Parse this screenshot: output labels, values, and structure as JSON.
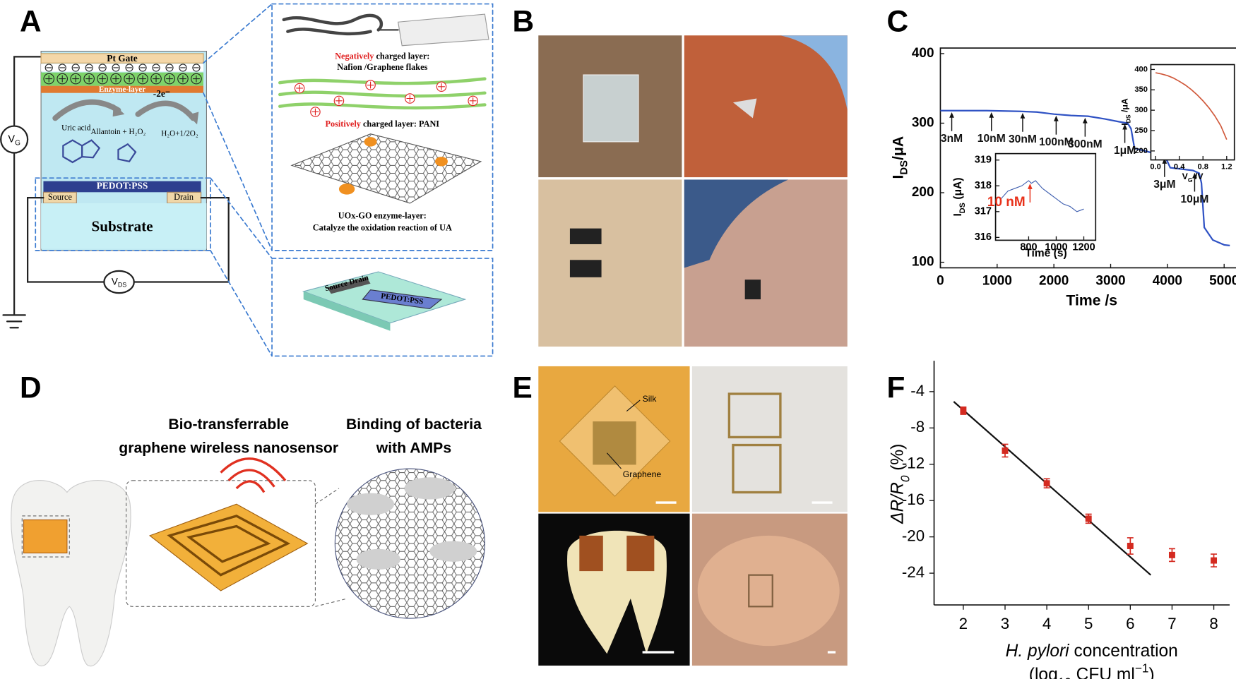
{
  "panel_labels": [
    "A",
    "B",
    "C",
    "D",
    "E",
    "F"
  ],
  "panel_a": {
    "pt_gate": "Pt Gate",
    "enzyme_layer": "Enzyme-layer",
    "uric_acid": "Uric acid",
    "allantoin": "Allantoin + H₂O₂",
    "electrons": "-2e⁻",
    "product": "H₂O+1/2O₂",
    "pedot": "PEDOT:PSS",
    "source": "Source",
    "drain": "Drain",
    "substrate": "Substrate",
    "vg": [
      "V",
      "G"
    ],
    "vds": [
      "V",
      "DS"
    ],
    "neg_title": [
      "Negatively",
      " charged layer:"
    ],
    "neg_desc": "Nafion /Graphene flakes",
    "pos_title": [
      "Positively",
      " charged layer: PANI"
    ],
    "enz_title": "UOx-GO  enzyme-layer:",
    "enz_desc": "Catalyze  the oxidation  reaction of UA",
    "device_source_drain": "Source Drain",
    "device_pedot": "PEDOT:PSS"
  },
  "panel_d": {
    "left_title": [
      "Bio-transferrable",
      "graphene wireless nanosensor"
    ],
    "right_title": [
      "Binding of bacteria",
      "with AMPs"
    ]
  },
  "panel_e": {
    "silk": "Silk",
    "graphene": "Graphene"
  },
  "chart_data": [
    {
      "type": "line",
      "xlabel": [
        [
          "Time /s"
        ]
      ],
      "ylabel": [
        "I",
        "DS",
        "/μA"
      ],
      "x": [
        0,
        300,
        800,
        1400,
        1700,
        2000,
        2300,
        2600,
        2900,
        3150,
        3300,
        3360,
        3420,
        3700,
        3950,
        4000,
        4050,
        4450,
        4560,
        4600,
        4650,
        4800,
        5000,
        5100
      ],
      "values": [
        318,
        318,
        318,
        317,
        316,
        313,
        311,
        310,
        306,
        302,
        300,
        292,
        264,
        258,
        252,
        245,
        236,
        232,
        228,
        214,
        150,
        132,
        125,
        124
      ],
      "color": "#2f52c4",
      "xlim": [
        0,
        5375
      ],
      "ylim": [
        92,
        408
      ],
      "xticks": [
        0,
        1000,
        2000,
        3000,
        4000,
        5000
      ],
      "yticks": [
        100,
        200,
        300,
        400
      ],
      "annotations": [
        {
          "text": "3nM",
          "x": 200,
          "y": 318
        },
        {
          "text": "10nM",
          "x": 900,
          "y": 318
        },
        {
          "text": "30nM",
          "x": 1450,
          "y": 317
        },
        {
          "text": "100nM",
          "x": 2040,
          "y": 313
        },
        {
          "text": "300nM",
          "x": 2550,
          "y": 310
        },
        {
          "text": "1μM",
          "x": 3250,
          "y": 301
        },
        {
          "text": "3μM",
          "x": 3950,
          "y": 252
        },
        {
          "text": "10μM",
          "x": 4480,
          "y": 231
        }
      ]
    },
    {
      "type": "line",
      "xlabel": [
        [
          "V",
          "G",
          " /V"
        ]
      ],
      "ylabel": [
        "I",
        "DS",
        " /μA"
      ],
      "x": [
        0,
        0.1,
        0.2,
        0.3,
        0.4,
        0.5,
        0.6,
        0.7,
        0.8,
        0.9,
        1.0,
        1.1,
        1.2
      ],
      "values": [
        392,
        389,
        385,
        379,
        371,
        362,
        351,
        338,
        323,
        306,
        286,
        262,
        228
      ],
      "color": "#d0583a",
      "xlim": [
        -0.08,
        1.33
      ],
      "ylim": [
        178,
        412
      ],
      "xticks": [
        {
          "value": 0,
          "label": "0.0"
        },
        0.4,
        0.8,
        1.2
      ],
      "yticks": [
        200,
        250,
        300,
        350,
        400
      ]
    },
    {
      "type": "line",
      "xlabel": [
        [
          "Time (s)"
        ]
      ],
      "ylabel": [
        "I",
        "DS",
        " (μA)"
      ],
      "x": [
        600,
        650,
        700,
        750,
        800,
        820,
        850,
        900,
        950,
        1000,
        1050,
        1100,
        1150,
        1200
      ],
      "values": [
        317.5,
        317.8,
        317.9,
        318.0,
        318.2,
        318.1,
        318.2,
        317.9,
        317.7,
        317.5,
        317.3,
        317.2,
        317.0,
        317.1
      ],
      "color": "#4060b0",
      "xlim": [
        560,
        1286
      ],
      "ylim": [
        315.89,
        319.25
      ],
      "xticks": [
        800,
        1000,
        1200
      ],
      "yticks": [
        316,
        317,
        318,
        319
      ],
      "annotations": [
        {
          "text": "10 nM",
          "x": 810,
          "y": 318.15,
          "color": "#e8311a"
        }
      ]
    },
    {
      "type": "scatter",
      "xlabel": [
        [
          "H. pylori",
          " concentration"
        ],
        [
          "(log",
          "10",
          " CFU ml",
          "−1",
          ")"
        ]
      ],
      "ylabel": [
        "ΔR/R",
        "0",
        " (%)"
      ],
      "x": [
        2,
        3,
        4,
        5,
        6,
        7,
        8
      ],
      "values": [
        -6.1,
        -10.5,
        -14.1,
        -18.0,
        -21.0,
        -22.0,
        -22.6
      ],
      "errors": [
        0.4,
        0.7,
        0.5,
        0.5,
        0.9,
        0.7,
        0.7
      ],
      "color": "#d42a20",
      "fit": {
        "x": [
          1.77,
          6.49
        ],
        "values": [
          -5.1,
          -24.2
        ],
        "color": "#111111"
      },
      "xlim": [
        1.3,
        8.38
      ],
      "ylim": [
        -27.5,
        -0.6
      ],
      "xticks": [
        2,
        3,
        4,
        5,
        6,
        7,
        8
      ],
      "yticks": [
        -4,
        -8,
        -12,
        -16,
        -20,
        -24
      ]
    }
  ]
}
